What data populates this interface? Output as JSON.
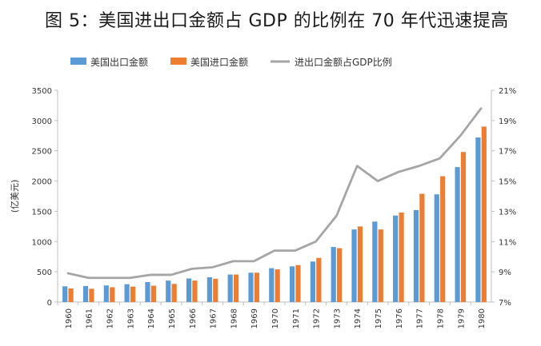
{
  "chart_data": {
    "type": "bar",
    "title": "图 5：美国进出口金额占 GDP 的比例在 70 年代迅速提高",
    "ylabel": "(亿美元)",
    "y2label": "",
    "ylim": [
      0,
      3500
    ],
    "yticks": [
      0,
      500,
      1000,
      1500,
      2000,
      2500,
      3000,
      3500
    ],
    "y2lim": [
      7,
      21
    ],
    "y2ticks": [
      "7%",
      "9%",
      "11%",
      "13%",
      "15%",
      "17%",
      "19%",
      "21%"
    ],
    "categories": [
      "1960",
      "1961",
      "1962",
      "1963",
      "1964",
      "1965",
      "1966",
      "1967",
      "1968",
      "1969",
      "1970",
      "1971",
      "1972",
      "1973",
      "1974",
      "1975",
      "1976",
      "1977",
      "1978",
      "1979",
      "1980"
    ],
    "series": [
      {
        "name": "美国出口金额",
        "type": "bar",
        "axis": "left",
        "color": "#5B9BD5",
        "values": [
          260,
          265,
          275,
          295,
          330,
          355,
          390,
          410,
          455,
          485,
          560,
          590,
          670,
          910,
          1200,
          1330,
          1430,
          1520,
          1780,
          2230,
          2720
        ]
      },
      {
        "name": "美国进口金额",
        "type": "bar",
        "axis": "left",
        "color": "#ED7D31",
        "values": [
          225,
          220,
          245,
          255,
          270,
          300,
          355,
          385,
          455,
          485,
          540,
          610,
          730,
          890,
          1250,
          1200,
          1480,
          1790,
          2080,
          2480,
          2900
        ]
      },
      {
        "name": "进出口金额占GDP比例",
        "type": "line",
        "axis": "right",
        "color": "#A5A5A5",
        "values": [
          8.9,
          8.6,
          8.6,
          8.6,
          8.8,
          8.8,
          9.2,
          9.3,
          9.7,
          9.7,
          10.4,
          10.4,
          11.0,
          12.7,
          16.0,
          15.0,
          15.6,
          16.0,
          16.5,
          18.0,
          19.8
        ]
      }
    ],
    "legend": "top",
    "grid": false
  }
}
